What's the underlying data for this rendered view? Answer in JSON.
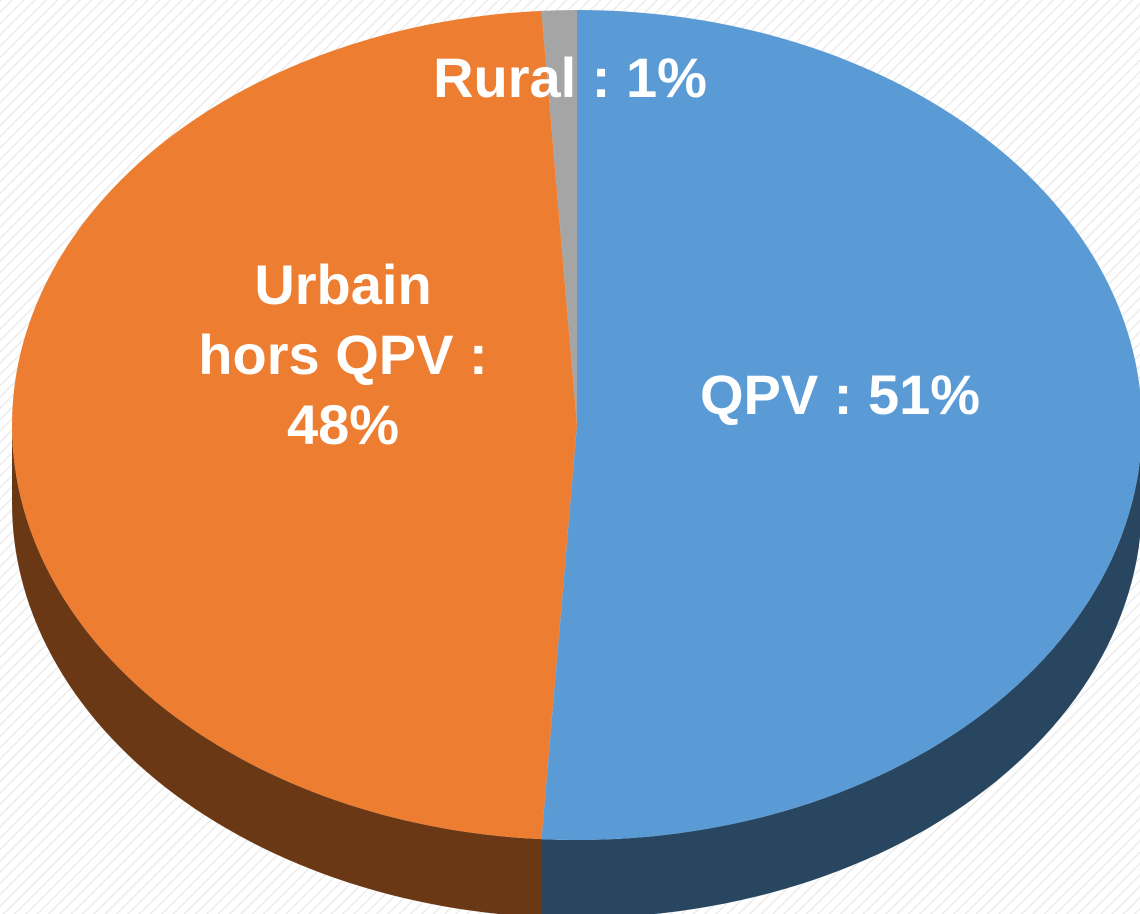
{
  "chart_data": {
    "type": "pie",
    "values": [
      51,
      48,
      1
    ],
    "value_labels": [
      "QPV : 51%",
      "Urbain\nhors QPV :\n48%",
      "Rural : 1%"
    ],
    "colors": [
      "#5b9bd5",
      "#ed7d31",
      "#a5a5a5"
    ]
  }
}
